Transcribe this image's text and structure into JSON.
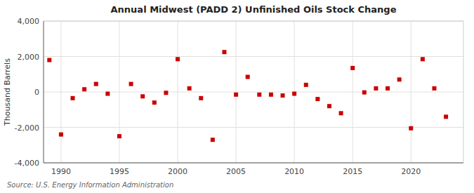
{
  "chart_data": {
    "type": "scatter",
    "title": "Annual Midwest (PADD 2) Unfinished Oils Stock Change",
    "ylabel": "Thousand Barrels",
    "annotations": [
      "Source: U.S. Energy Information Administration"
    ],
    "color": "#cc0000",
    "marker": "square",
    "grid": true,
    "xlim": [
      1988.5,
      2024.5
    ],
    "ylim": [
      -4000,
      4000
    ],
    "xticks": [
      1990,
      1995,
      2000,
      2005,
      2010,
      2015,
      2020
    ],
    "yticks": [
      {
        "value": -4000,
        "label": "-4,000"
      },
      {
        "value": -2000,
        "label": "-2,000"
      },
      0,
      {
        "value": 2000,
        "label": "2,000"
      },
      {
        "value": 4000,
        "label": "4,000"
      }
    ],
    "x": [
      1989,
      1990,
      1991,
      1992,
      1993,
      1994,
      1995,
      1996,
      1997,
      1998,
      1999,
      2000,
      2001,
      2002,
      2003,
      2004,
      2005,
      2006,
      2007,
      2008,
      2009,
      2010,
      2011,
      2012,
      2013,
      2014,
      2015,
      2016,
      2017,
      2018,
      2019,
      2020,
      2021,
      2022,
      2023
    ],
    "values": [
      1800,
      -2400,
      -350,
      150,
      450,
      -100,
      -2500,
      450,
      -250,
      -600,
      -50,
      1850,
      200,
      -350,
      -2700,
      2250,
      -150,
      850,
      -150,
      -150,
      -200,
      -100,
      400,
      -400,
      -800,
      -1200,
      1350,
      -25,
      200,
      200,
      700,
      -2050,
      1850,
      200,
      -1400
    ]
  }
}
